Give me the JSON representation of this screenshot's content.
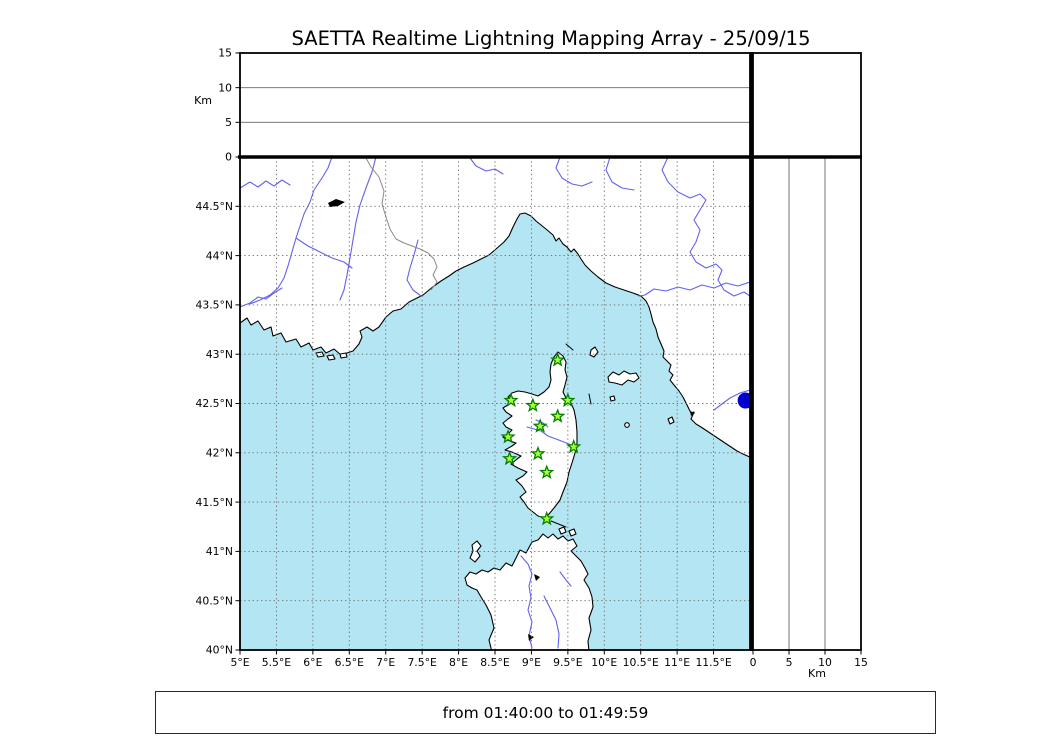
{
  "title": "SAETTA Realtime Lightning Mapping Array - 25/09/15",
  "footer": {
    "text": "from 01:40:00 to 01:49:59"
  },
  "altitude_panel": {
    "axis_label": "Km",
    "ticks": [
      {
        "v": 0,
        "label": "0"
      },
      {
        "v": 5,
        "label": "5"
      },
      {
        "v": 10,
        "label": "10"
      },
      {
        "v": 15,
        "label": "15"
      }
    ]
  },
  "right_panel": {
    "axis_label": "Km",
    "ticks": [
      {
        "v": 0,
        "label": "0"
      },
      {
        "v": 5,
        "label": "5"
      },
      {
        "v": 10,
        "label": "10"
      },
      {
        "v": 15,
        "label": "15"
      }
    ]
  },
  "map": {
    "lon_range": [
      5,
      12
    ],
    "lat_range": [
      40,
      45
    ],
    "lon_ticks": [
      {
        "v": 5,
        "label": "5°E"
      },
      {
        "v": 5.5,
        "label": "5.5°E"
      },
      {
        "v": 6,
        "label": "6°E"
      },
      {
        "v": 6.5,
        "label": "6.5°E"
      },
      {
        "v": 7,
        "label": "7°E"
      },
      {
        "v": 7.5,
        "label": "7.5°E"
      },
      {
        "v": 8,
        "label": "8°E"
      },
      {
        "v": 8.5,
        "label": "8.5°E"
      },
      {
        "v": 9,
        "label": "9°E"
      },
      {
        "v": 9.5,
        "label": "9.5°E"
      },
      {
        "v": 10,
        "label": "10°E"
      },
      {
        "v": 10.5,
        "label": "10.5°E"
      },
      {
        "v": 11,
        "label": "11°E"
      },
      {
        "v": 11.5,
        "label": "11.5°E"
      }
    ],
    "lat_ticks": [
      {
        "v": 40,
        "label": "40°N"
      },
      {
        "v": 40.5,
        "label": "40.5°N"
      },
      {
        "v": 41,
        "label": "41°N"
      },
      {
        "v": 41.5,
        "label": "41.5°N"
      },
      {
        "v": 42,
        "label": "42°N"
      },
      {
        "v": 42.5,
        "label": "42.5°N"
      },
      {
        "v": 43,
        "label": "43°N"
      },
      {
        "v": 43.5,
        "label": "43.5°N"
      },
      {
        "v": 44,
        "label": "44°N"
      },
      {
        "v": 44.5,
        "label": "44.5°N"
      }
    ],
    "stations": [
      {
        "lon": 9.36,
        "lat": 42.94
      },
      {
        "lon": 8.72,
        "lat": 42.53
      },
      {
        "lon": 9.02,
        "lat": 42.48
      },
      {
        "lon": 9.5,
        "lat": 42.53
      },
      {
        "lon": 9.36,
        "lat": 42.37
      },
      {
        "lon": 9.12,
        "lat": 42.27
      },
      {
        "lon": 8.68,
        "lat": 42.16
      },
      {
        "lon": 9.58,
        "lat": 42.06
      },
      {
        "lon": 9.09,
        "lat": 41.99
      },
      {
        "lon": 8.7,
        "lat": 41.94
      },
      {
        "lon": 9.21,
        "lat": 41.8
      },
      {
        "lon": 9.21,
        "lat": 41.33
      }
    ],
    "event": {
      "lon": 11.94,
      "lat": 42.53
    }
  },
  "colors": {
    "sea": "#b3e6f2",
    "land": "#ffffff",
    "coast": "#000000",
    "grid": "#6e6e6e",
    "river": "#6161ef",
    "adminline": "#8a8a8a",
    "lake": "#000000",
    "star_fill": "#adff2f",
    "star_edge": "#008000",
    "event": "#0000cc"
  }
}
